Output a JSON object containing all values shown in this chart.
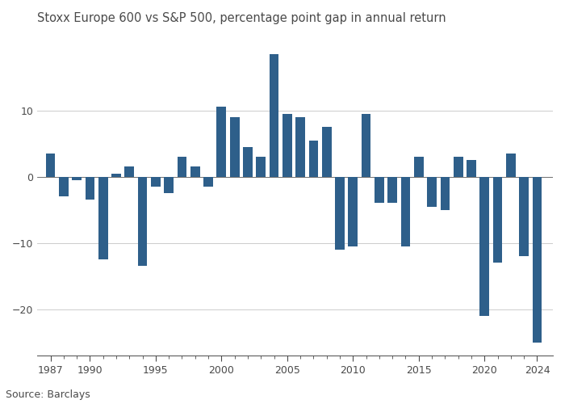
{
  "title": "Stoxx Europe 600 vs S&P 500, percentage point gap in annual return",
  "source": "Source: Barclays",
  "years": [
    1987,
    1988,
    1989,
    1990,
    1991,
    1992,
    1993,
    1994,
    1995,
    1996,
    1997,
    1998,
    1999,
    2000,
    2001,
    2002,
    2003,
    2004,
    2005,
    2006,
    2007,
    2008,
    2009,
    2010,
    2011,
    2012,
    2013,
    2014,
    2015,
    2016,
    2017,
    2018,
    2019,
    2020,
    2021,
    2022,
    2023,
    2024
  ],
  "values": [
    3.5,
    -3.0,
    -0.5,
    -3.5,
    -12.5,
    0.5,
    1.5,
    -13.5,
    -1.5,
    -2.5,
    3.0,
    1.5,
    -1.5,
    10.5,
    9.0,
    4.5,
    3.0,
    18.5,
    9.5,
    9.0,
    5.5,
    7.5,
    -11.0,
    -10.5,
    9.5,
    -4.0,
    -4.0,
    -10.5,
    3.0,
    -4.5,
    -5.0,
    3.0,
    2.5,
    -21.0,
    -13.0,
    3.5,
    -12.0,
    -25.0
  ],
  "bar_color": "#2E5F8A",
  "bg_color": "#ffffff",
  "text_color": "#4a4a4a",
  "grid_color": "#cccccc",
  "ylim": [
    -27,
    22
  ],
  "yticks": [
    -20,
    -10,
    0,
    10
  ],
  "xtick_labels": [
    1987,
    1990,
    1995,
    2000,
    2005,
    2010,
    2015,
    2020,
    2024
  ],
  "title_fontsize": 10.5,
  "source_fontsize": 9,
  "bar_width": 0.72
}
